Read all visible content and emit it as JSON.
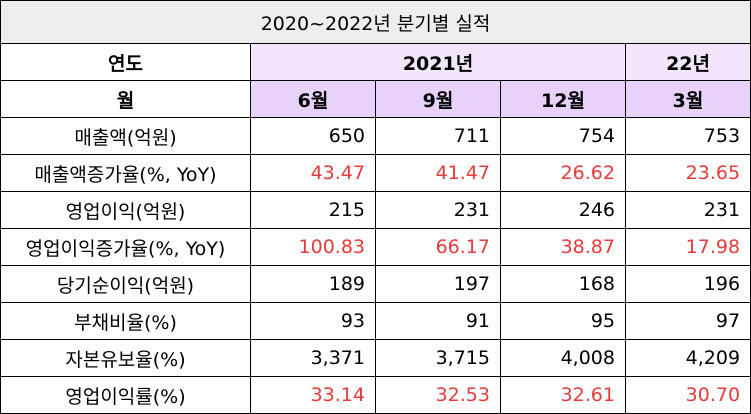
{
  "title": "2020~2022년 분기별 실적",
  "header": {
    "year_label": "연도",
    "year_2021": "2021년",
    "year_22": "22년",
    "month_label": "월",
    "months": [
      "6월",
      "9월",
      "12월",
      "3월"
    ]
  },
  "rows": [
    {
      "label": "매출액(억원)",
      "values": [
        "650",
        "711",
        "754",
        "753"
      ],
      "red": false
    },
    {
      "label": "매출액증가율(%, YoY)",
      "values": [
        "43.47",
        "41.47",
        "26.62",
        "23.65"
      ],
      "red": true
    },
    {
      "label": "영업이익(억원)",
      "values": [
        "215",
        "231",
        "246",
        "231"
      ],
      "red": false
    },
    {
      "label": "영업이익증가율(%, YoY)",
      "values": [
        "100.83",
        "66.17",
        "38.87",
        "17.98"
      ],
      "red": true
    },
    {
      "label": "당기순이익(억원)",
      "values": [
        "189",
        "197",
        "168",
        "196"
      ],
      "red": false
    },
    {
      "label": "부채비율(%)",
      "values": [
        "93",
        "91",
        "95",
        "97"
      ],
      "red": false
    },
    {
      "label": "자본유보율(%)",
      "values": [
        "3,371",
        "3,715",
        "4,008",
        "4,209"
      ],
      "red": false
    },
    {
      "label": "영업이익률(%)",
      "values": [
        "33.14",
        "32.53",
        "32.61",
        "30.70"
      ],
      "red": true
    }
  ],
  "colors": {
    "red_text": "#e53b3b",
    "header_purple": "#e8d2fa",
    "title_bg": "#eeeeee"
  }
}
